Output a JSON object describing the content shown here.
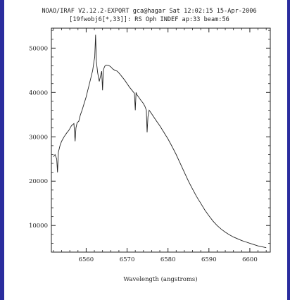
{
  "header": {
    "line1": "NOAO/IRAF V2.12.2-EXPORT gca@hagar Sat 12:02:15 15-Apr-2006",
    "line2": "[19fwobj6[*,33]]: RS Oph INDEF ap:33 beam:56"
  },
  "colors": {
    "background": "#2a2d9e",
    "panel": "#ffffff",
    "ink": "#222222"
  },
  "chart_data": {
    "type": "line",
    "title": "",
    "xlabel": "Wavelength (angstroms)",
    "ylabel": "",
    "xlim": [
      6551.5,
      6605
    ],
    "ylim": [
      4000,
      54500
    ],
    "xticks": [
      6560,
      6570,
      6580,
      6590,
      6600
    ],
    "xtick_labels": [
      "6560",
      "6570",
      "6580",
      "6590",
      "6600"
    ],
    "yticks": [
      10000,
      20000,
      30000,
      40000,
      50000
    ],
    "ytick_labels": [
      "10000",
      "20000",
      "30000",
      "40000",
      "50000"
    ],
    "grid": false,
    "series": [
      {
        "x": [
          6552.0,
          6552.4,
          6552.8,
          6553.0,
          6553.2,
          6553.6,
          6554.0,
          6554.6,
          6555.2,
          6555.8,
          6556.4,
          6557.0,
          6557.3,
          6557.5,
          6557.8,
          6558.2,
          6558.6,
          6559.0,
          6559.5,
          6560.0,
          6560.4,
          6560.8,
          6561.2,
          6561.6,
          6561.9,
          6562.1,
          6562.3,
          6562.5,
          6562.8,
          6563.2,
          6563.6,
          6563.8,
          6564.0,
          6564.2,
          6564.4,
          6564.6,
          6564.9,
          6565.5,
          6566.0,
          6566.5,
          6567.0,
          6567.6,
          6568.2,
          6568.8,
          6569.4,
          6570.0,
          6570.6,
          6571.2,
          6571.8,
          6572.0,
          6572.2,
          6572.4,
          6572.8,
          6573.4,
          6574.0,
          6574.4,
          6574.7,
          6574.9,
          6575.1,
          6575.4,
          6576.0,
          6577.0,
          6578.0,
          6579.0,
          6580.0,
          6581.0,
          6582.0,
          6583.0,
          6584.0,
          6585.0,
          6586.0,
          6587.0,
          6588.0,
          6589.0,
          6590.0,
          6591.0,
          6592.0,
          6593.0,
          6594.0,
          6595.0,
          6596.0,
          6597.0,
          6598.0,
          6599.0,
          6600.0,
          6601.0,
          6602.0,
          6603.0,
          6604.0
        ],
        "y": [
          25500,
          26000,
          25000,
          22000,
          26500,
          28000,
          29000,
          30000,
          30800,
          31500,
          32500,
          33000,
          29000,
          32000,
          33200,
          33500,
          35000,
          36000,
          37500,
          39000,
          40500,
          42000,
          43500,
          45000,
          47000,
          48000,
          53000,
          47000,
          44500,
          42500,
          44000,
          44800,
          40500,
          45000,
          45600,
          46000,
          46200,
          46100,
          45800,
          45300,
          45000,
          44800,
          44200,
          43500,
          42800,
          42000,
          41200,
          40500,
          39800,
          36000,
          40000,
          39500,
          39000,
          38200,
          37500,
          36800,
          36000,
          31000,
          34500,
          36000,
          35200,
          33800,
          32500,
          31000,
          29500,
          27800,
          26000,
          24000,
          22000,
          20000,
          18200,
          16500,
          15000,
          13500,
          12200,
          11000,
          10000,
          9200,
          8500,
          7900,
          7400,
          7000,
          6600,
          6300,
          6000,
          5700,
          5400,
          5200,
          5000
        ]
      }
    ]
  }
}
